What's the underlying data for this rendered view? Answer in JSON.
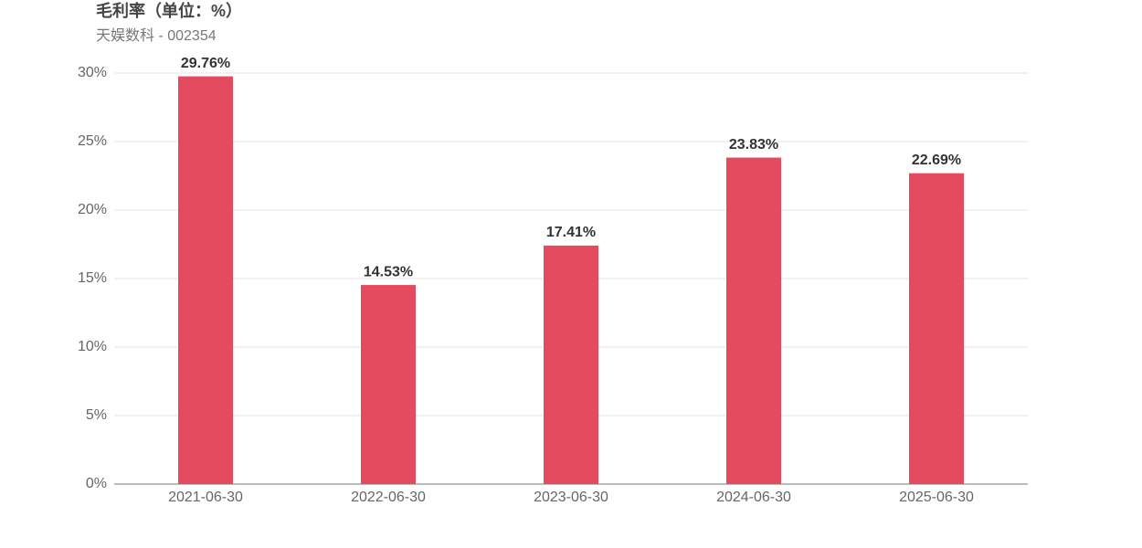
{
  "chart_data": {
    "type": "bar",
    "title": "毛利率（单位：%）",
    "subtitle": "天娱数科 - 002354",
    "categories": [
      "2021-06-30",
      "2022-06-30",
      "2023-06-30",
      "2024-06-30",
      "2025-06-30"
    ],
    "values": [
      29.76,
      14.53,
      17.41,
      23.83,
      22.69
    ],
    "value_labels": [
      "29.76%",
      "14.53%",
      "17.41%",
      "23.83%",
      "22.69%"
    ],
    "color": "#e54b5e",
    "ylim": [
      0,
      30
    ],
    "yticks": [
      {
        "value": 0,
        "label": "0%"
      },
      {
        "value": 5,
        "label": "5%"
      },
      {
        "value": 10,
        "label": "10%"
      },
      {
        "value": 15,
        "label": "15%"
      },
      {
        "value": 20,
        "label": "20%"
      },
      {
        "value": 25,
        "label": "25%"
      },
      {
        "value": 30,
        "label": "30%"
      }
    ],
    "grid": true
  }
}
